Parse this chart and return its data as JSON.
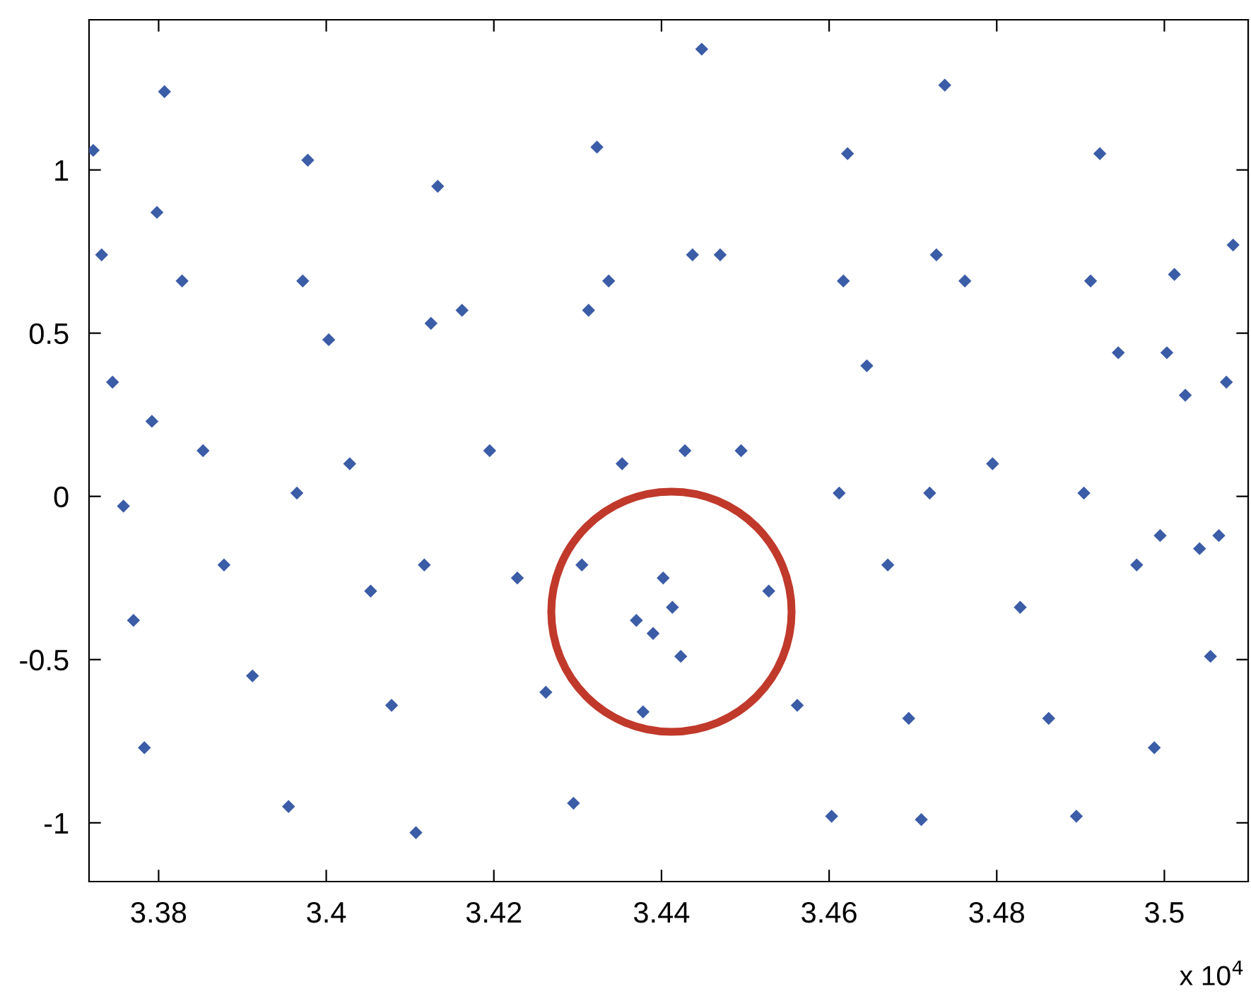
{
  "chart_data": {
    "type": "scatter",
    "x": [
      3.3722,
      3.3732,
      3.3745,
      3.3758,
      3.377,
      3.3783,
      3.3792,
      3.3798,
      3.3807,
      3.3828,
      3.3853,
      3.3878,
      3.3912,
      3.3955,
      3.3965,
      3.3972,
      3.3978,
      3.4003,
      3.4028,
      3.4053,
      3.4078,
      3.4107,
      3.4117,
      3.4125,
      3.4133,
      3.4162,
      3.4195,
      3.4228,
      3.4262,
      3.4295,
      3.4305,
      3.4313,
      3.4323,
      3.4337,
      3.4353,
      3.437,
      3.4378,
      3.439,
      3.4402,
      3.4413,
      3.4423,
      3.4428,
      3.4437,
      3.4448,
      3.447,
      3.4495,
      3.4528,
      3.4562,
      3.4603,
      3.4612,
      3.4617,
      3.4622,
      3.4645,
      3.467,
      3.4695,
      3.471,
      3.472,
      3.4728,
      3.4738,
      3.4762,
      3.4795,
      3.4828,
      3.4862,
      3.4895,
      3.4904,
      3.4912,
      3.4923,
      3.4945,
      3.4967,
      3.4988,
      3.4995,
      3.5003,
      3.5012,
      3.5025,
      3.5042,
      3.5055,
      3.5065,
      3.5074,
      3.5082
    ],
    "series": [
      {
        "color": "#3b5ca6",
        "values": [
          1.06,
          0.74,
          0.35,
          -0.03,
          -0.38,
          -0.77,
          0.23,
          0.87,
          1.24,
          0.66,
          0.14,
          -0.21,
          -0.55,
          -0.95,
          0.01,
          0.66,
          1.03,
          0.48,
          0.1,
          -0.29,
          -0.64,
          -1.03,
          -0.21,
          0.53,
          0.95,
          0.57,
          0.14,
          -0.25,
          -0.6,
          -0.94,
          -0.21,
          0.57,
          1.07,
          0.66,
          0.1,
          -0.38,
          -0.66,
          -0.42,
          -0.25,
          -0.34,
          -0.49,
          0.14,
          0.74,
          1.37,
          0.74,
          0.14,
          -0.29,
          -0.64,
          -0.98,
          0.01,
          0.66,
          1.05,
          0.4,
          -0.21,
          -0.68,
          -0.99,
          0.01,
          0.74,
          1.26,
          0.66,
          0.1,
          -0.34,
          -0.68,
          -0.98,
          0.01,
          0.66,
          1.05,
          0.44,
          -0.21,
          -0.77,
          -0.12,
          0.44,
          0.68,
          0.31,
          -0.16,
          -0.49,
          -0.12,
          0.35,
          0.77
        ]
      }
    ],
    "xlim": [
      3.3717,
      3.51
    ],
    "xticks": [
      3.38,
      3.4,
      3.42,
      3.44,
      3.46,
      3.48,
      3.5
    ],
    "ylim": [
      -1.18,
      1.46
    ],
    "yticks": [
      -1,
      -0.5,
      0,
      0.5,
      1
    ],
    "marker": "diamond",
    "grid": false,
    "legend": false,
    "annotations": [
      "x 10$^{4}$"
    ]
  }
}
